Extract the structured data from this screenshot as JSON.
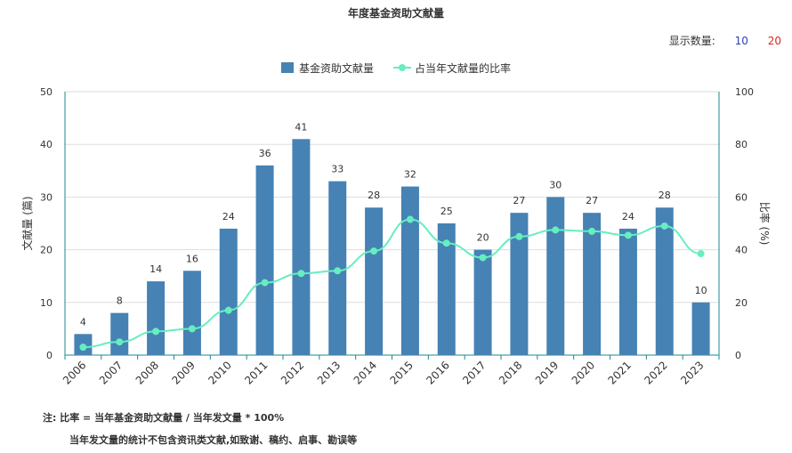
{
  "title": "年度基金资助文献量",
  "display_count": {
    "label": "显示数量:",
    "options": [
      {
        "text": "10",
        "color": "#2b3fb6"
      },
      {
        "text": "20",
        "color": "#e02020"
      }
    ]
  },
  "notes": {
    "line1": "注:  比率 = 当年基金资助文献量 / 当年发文量 * 100%",
    "line2": "当年发文量的统计不包含资讯类文献,如致谢、稿约、启事、勘误等"
  },
  "colors": {
    "bar": "#4682b4",
    "line": "#66eec0",
    "axis": "#1b8a8f",
    "grid": "#dddddd"
  },
  "chart_data": {
    "type": "bar",
    "categories": [
      "2006",
      "2007",
      "2008",
      "2009",
      "2010",
      "2011",
      "2012",
      "2013",
      "2014",
      "2015",
      "2016",
      "2017",
      "2018",
      "2019",
      "2020",
      "2021",
      "2022",
      "2023"
    ],
    "series": [
      {
        "name": "基金资助文献量",
        "type": "bar",
        "axis": "left",
        "values": [
          4,
          8,
          14,
          16,
          24,
          36,
          41,
          33,
          28,
          32,
          25,
          20,
          27,
          30,
          27,
          24,
          28,
          10
        ]
      },
      {
        "name": "占当年文献量的比率",
        "type": "line",
        "axis": "right",
        "values": [
          3,
          5,
          9,
          10,
          17,
          27.5,
          31,
          32,
          39.5,
          51.5,
          42.5,
          37,
          45,
          47.5,
          47,
          45.5,
          49,
          38.5
        ]
      }
    ],
    "ylabel": "文献量 (篇)",
    "ylabel_right": "比率 (%)",
    "ylim": [
      0,
      50
    ],
    "yticks": [
      0,
      10,
      20,
      30,
      40,
      50
    ],
    "ylim_right": [
      0,
      100
    ],
    "yticks_right": [
      0,
      20,
      40,
      60,
      80,
      100
    ],
    "legend": "top-center",
    "grid": true
  }
}
